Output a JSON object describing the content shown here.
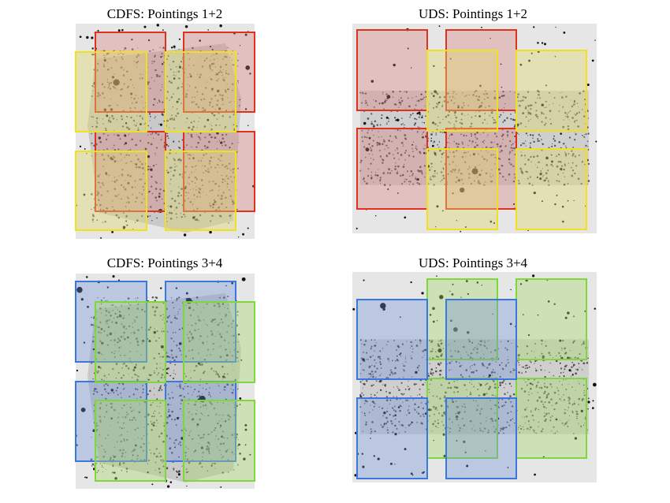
{
  "panels": [
    {
      "title": "CDFS: Pointings 1+2"
    },
    {
      "title": "UDS: Pointings 1+2"
    },
    {
      "title": "CDFS: Pointings 3+4"
    },
    {
      "title": "UDS: Pointings 3+4"
    }
  ]
}
